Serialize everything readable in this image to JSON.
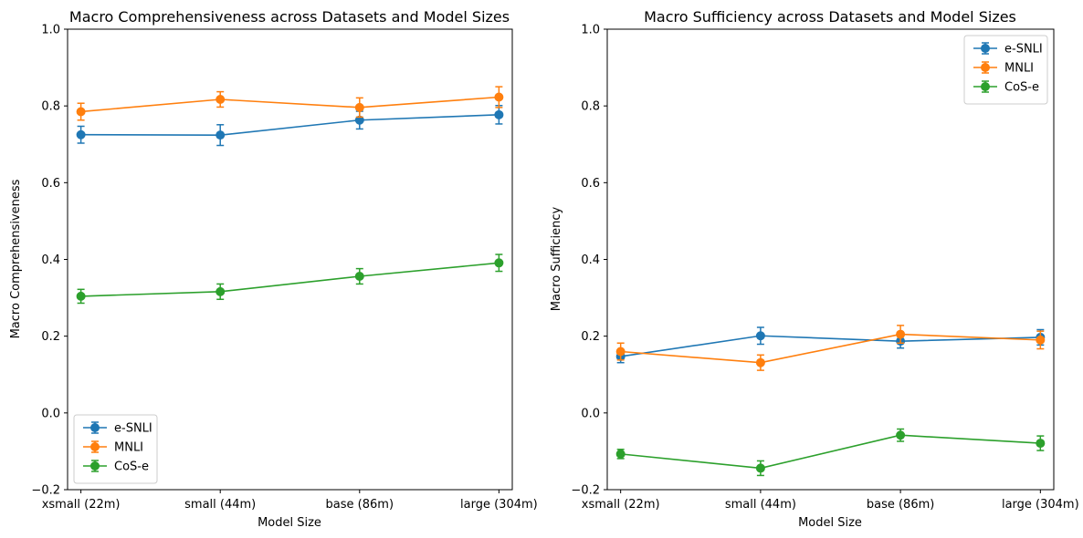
{
  "colors": {
    "e-SNLI": "#1f77b4",
    "MNLI": "#ff7f0e",
    "CoS-e": "#2ca02c"
  },
  "chart_data": [
    {
      "type": "line",
      "title": "Macro Comprehensiveness across Datasets and Model Sizes",
      "xlabel": "Model Size",
      "ylabel": "Macro Comprehensiveness",
      "categories": [
        "xsmall (22m)",
        "small (44m)",
        "base (86m)",
        "large (304m)"
      ],
      "ylim": [
        -0.2,
        1.0
      ],
      "yticks": [
        "−0.2",
        "0.0",
        "0.2",
        "0.4",
        "0.6",
        "0.8",
        "1.0"
      ],
      "legend_loc": "lower-left",
      "series": [
        {
          "name": "e-SNLI",
          "values": [
            0.725,
            0.724,
            0.763,
            0.777
          ],
          "errors": [
            0.022,
            0.027,
            0.023,
            0.024
          ]
        },
        {
          "name": "MNLI",
          "values": [
            0.785,
            0.817,
            0.796,
            0.823
          ],
          "errors": [
            0.022,
            0.02,
            0.025,
            0.027
          ]
        },
        {
          "name": "CoS-e",
          "values": [
            0.304,
            0.316,
            0.356,
            0.391
          ],
          "errors": [
            0.018,
            0.02,
            0.02,
            0.022
          ]
        }
      ]
    },
    {
      "type": "line",
      "title": "Macro Sufficiency across Datasets and Model Sizes",
      "xlabel": "Model Size",
      "ylabel": "Macro Sufficiency",
      "categories": [
        "xsmall (22m)",
        "small (44m)",
        "base (86m)",
        "large (304m)"
      ],
      "ylim": [
        -0.2,
        1.0
      ],
      "yticks": [
        "−0.2",
        "0.0",
        "0.2",
        "0.4",
        "0.6",
        "0.8",
        "1.0"
      ],
      "legend_loc": "upper-right",
      "series": [
        {
          "name": "e-SNLI",
          "values": [
            0.147,
            0.201,
            0.187,
            0.197
          ],
          "errors": [
            0.016,
            0.022,
            0.018,
            0.02
          ]
        },
        {
          "name": "MNLI",
          "values": [
            0.16,
            0.131,
            0.205,
            0.19
          ],
          "errors": [
            0.022,
            0.02,
            0.023,
            0.023
          ]
        },
        {
          "name": "CoS-e",
          "values": [
            -0.107,
            -0.144,
            -0.058,
            -0.079
          ],
          "errors": [
            0.012,
            0.019,
            0.016,
            0.019
          ]
        }
      ]
    }
  ]
}
